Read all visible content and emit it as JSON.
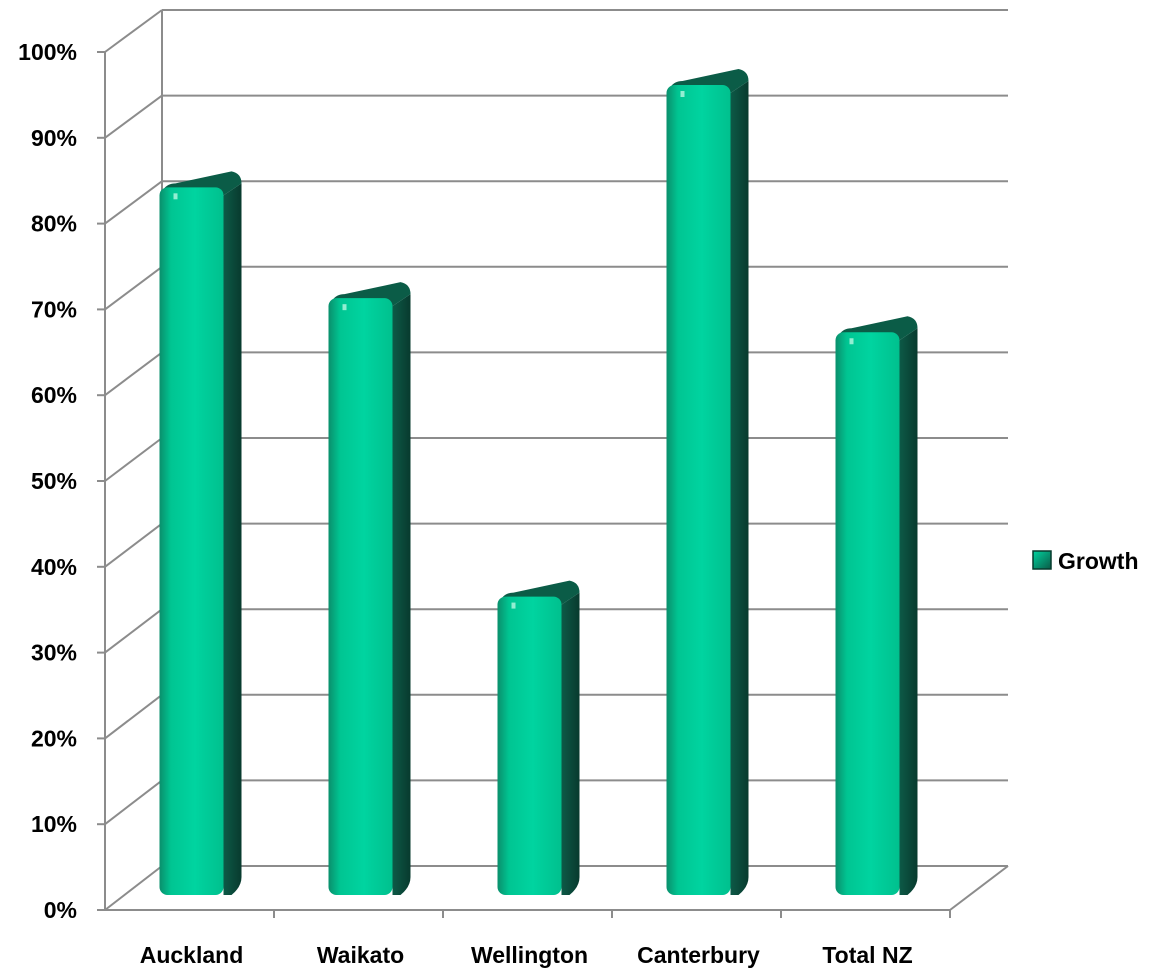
{
  "chart_data": {
    "type": "bar",
    "categories": [
      "Auckland",
      "Waikato",
      "Wellington",
      "Canterbury",
      "Total NZ"
    ],
    "series": [
      {
        "name": "Growth",
        "values": [
          83,
          70,
          35,
          95,
          66
        ]
      }
    ],
    "ylim": [
      0,
      100
    ],
    "yticks": [
      "0%",
      "10%",
      "20%",
      "30%",
      "40%",
      "50%",
      "60%",
      "70%",
      "80%",
      "90%",
      "100%"
    ],
    "grid": true,
    "legend_position": "right",
    "bar_color": "#00cc99",
    "bar_side_color": "#0a4a3a",
    "style": "3d"
  }
}
